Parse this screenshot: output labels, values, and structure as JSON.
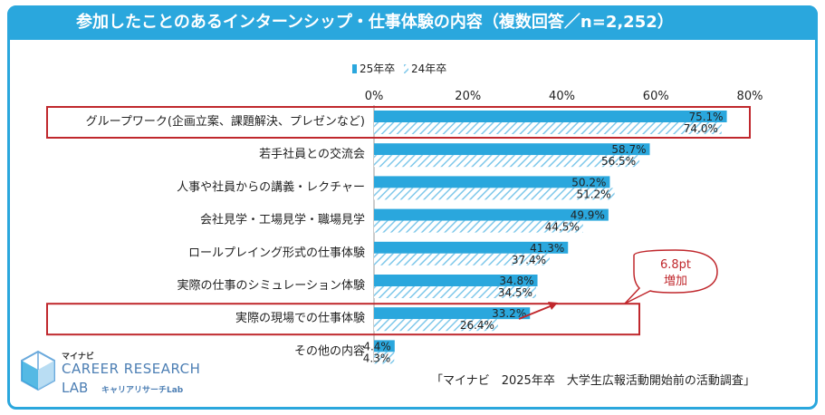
{
  "title": "参加したことのあるインターンシップ・仕事体験の内容（複数回答／n=2,252）",
  "colors": {
    "series1": "#2aa7dd",
    "series2_hatch": "#7fc8ea",
    "highlight": "#c0282d",
    "frame": "#2aa7dd"
  },
  "annotation": {
    "line1": "6.8pt",
    "line2": "増加"
  },
  "source": "「マイナビ　2025年卒　大学生広報活動開始前の活動調査」",
  "logo": {
    "small": "マイナビ",
    "line1": "CAREER RESEARCH",
    "line2": "LAB",
    "line3": "キャリアリサーチLab"
  },
  "chart_data": {
    "type": "bar",
    "orientation": "horizontal",
    "categories": [
      "グループワーク(企画立案、課題解決、プレゼンなど)",
      "若手社員との交流会",
      "人事や社員からの講義・レクチャー",
      "会社見学・工場見学・職場見学",
      "ロールプレイング形式の仕事体験",
      "実際の仕事のシミュレーション体験",
      "実際の現場での仕事体験",
      "その他の内容"
    ],
    "series": [
      {
        "name": "25年卒",
        "values": [
          75.1,
          58.7,
          50.2,
          49.9,
          41.3,
          34.8,
          33.2,
          4.4
        ]
      },
      {
        "name": "24年卒",
        "values": [
          74.0,
          56.5,
          51.2,
          44.5,
          37.4,
          34.5,
          26.4,
          4.3
        ]
      }
    ],
    "xlim": [
      0,
      80
    ],
    "ticks": [
      "0%",
      "20%",
      "40%",
      "60%",
      "80%"
    ],
    "value_suffix": "%",
    "legend_position": "top",
    "highlighted_categories": [
      0,
      6
    ]
  }
}
